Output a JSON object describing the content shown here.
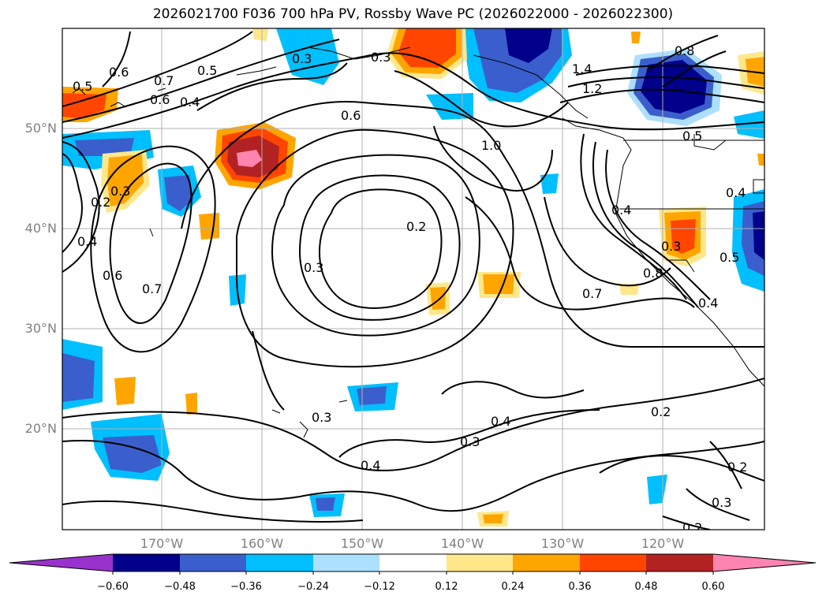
{
  "title": "2026021700 F036 700 hPa PV, Rossby Wave PC (2026022000 - 2026022300)",
  "map": {
    "lat_labels": [
      "50°N",
      "40°N",
      "30°N",
      "20°N"
    ],
    "lon_labels": [
      "170°W",
      "160°W",
      "150°W",
      "140°W",
      "130°W",
      "120°W"
    ],
    "contour_labels": [
      "0.6",
      "0.7",
      "0.5",
      "0.3",
      "0.6",
      "0.4",
      "1.4",
      "1.2",
      "1.0",
      "0.8",
      "0.6",
      "0.5",
      "0.5",
      "0.3",
      "0.2",
      "0.4",
      "0.2",
      "0.3",
      "0.4",
      "0.6",
      "0.7",
      "0.3",
      "0.4",
      "0.8",
      "0.7",
      "0.4",
      "0.5",
      "0.3",
      "0.3",
      "0.4",
      "0.3",
      "0.4",
      "0.2",
      "0.2",
      "0.3",
      "0.2"
    ]
  },
  "colorbar": {
    "ticks": [
      "−0.60",
      "−0.48",
      "−0.36",
      "−0.24",
      "−0.12",
      "0.12",
      "0.24",
      "0.36",
      "0.48",
      "0.60"
    ],
    "colors": [
      "#9932CC",
      "#00008B",
      "#3A5FCD",
      "#00BFFF",
      "#ADDFFF",
      "#FFFFFF",
      "#FFE78A",
      "#FFA500",
      "#FF4500",
      "#B22222",
      "#FF85B0"
    ]
  }
}
